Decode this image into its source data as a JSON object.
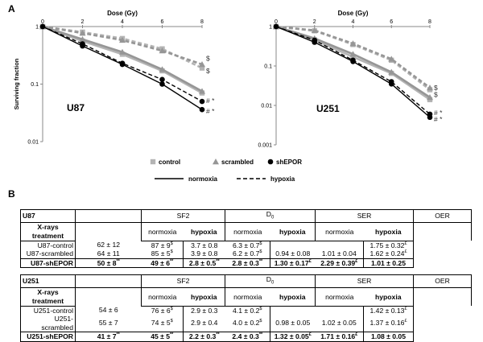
{
  "panel_a": "A",
  "panel_b": "B",
  "chart_data": [
    {
      "type": "line",
      "title": "U87",
      "xlabel": "Dose (Gy)",
      "ylabel": "Surviving fraction",
      "yscale": "log",
      "xlim": [
        0,
        8
      ],
      "ylim": [
        0.01,
        1
      ],
      "xticks": [
        "0",
        "2",
        "4",
        "6",
        "8"
      ],
      "yticks": [
        "1",
        "0.1",
        "0.01"
      ],
      "series": [
        {
          "name": "control",
          "condition": "normoxia",
          "marker": "square",
          "color": "#b4b4b4",
          "x": [
            0,
            2,
            4,
            6,
            8
          ],
          "y": [
            1,
            0.56,
            0.33,
            0.17,
            0.07
          ]
        },
        {
          "name": "scrambled",
          "condition": "normoxia",
          "marker": "triangle",
          "color": "#969696",
          "x": [
            0,
            2,
            4,
            6,
            8
          ],
          "y": [
            1,
            0.6,
            0.36,
            0.18,
            0.075
          ]
        },
        {
          "name": "shEPOR",
          "condition": "normoxia",
          "marker": "circle",
          "color": "#000000",
          "x": [
            0,
            2,
            4,
            6,
            8
          ],
          "y": [
            1,
            0.46,
            0.22,
            0.1,
            0.036
          ]
        },
        {
          "name": "control",
          "condition": "hypoxia",
          "marker": "square",
          "color": "#b4b4b4",
          "x": [
            0,
            2,
            4,
            6,
            8
          ],
          "y": [
            1,
            0.8,
            0.62,
            0.41,
            0.19
          ]
        },
        {
          "name": "scrambled",
          "condition": "hypoxia",
          "marker": "triangle",
          "color": "#969696",
          "x": [
            0,
            2,
            4,
            6,
            8
          ],
          "y": [
            1,
            0.77,
            0.58,
            0.38,
            0.22
          ]
        },
        {
          "name": "shEPOR",
          "condition": "hypoxia",
          "marker": "circle",
          "color": "#000000",
          "x": [
            0,
            2,
            4,
            6,
            8
          ],
          "y": [
            1,
            0.5,
            0.23,
            0.12,
            0.05
          ]
        }
      ],
      "annotations": [
        {
          "text": "$",
          "x": 8,
          "y": 0.28
        },
        {
          "text": "$",
          "x": 8,
          "y": 0.17
        },
        {
          "text": "# *",
          "x": 8,
          "y": 0.052
        },
        {
          "text": "# *",
          "x": 8,
          "y": 0.034
        }
      ]
    },
    {
      "type": "line",
      "title": "U251",
      "xlabel": "Dose (Gy)",
      "ylabel": "",
      "yscale": "log",
      "xlim": [
        0,
        8
      ],
      "ylim": [
        0.001,
        1
      ],
      "xticks": [
        "0",
        "2",
        "4",
        "6",
        "8"
      ],
      "yticks": [
        "1",
        "0.1",
        "0.01",
        "0.001"
      ],
      "series": [
        {
          "name": "control",
          "condition": "normoxia",
          "marker": "square",
          "color": "#b4b4b4",
          "x": [
            0,
            2,
            4,
            6,
            8
          ],
          "y": [
            1,
            0.46,
            0.17,
            0.065,
            0.014
          ]
        },
        {
          "name": "scrambled",
          "condition": "normoxia",
          "marker": "triangle",
          "color": "#969696",
          "x": [
            0,
            2,
            4,
            6,
            8
          ],
          "y": [
            1,
            0.5,
            0.2,
            0.07,
            0.016
          ]
        },
        {
          "name": "shEPOR",
          "condition": "normoxia",
          "marker": "circle",
          "color": "#000000",
          "x": [
            0,
            2,
            4,
            6,
            8
          ],
          "y": [
            1,
            0.4,
            0.13,
            0.035,
            0.005
          ]
        },
        {
          "name": "control",
          "condition": "hypoxia",
          "marker": "square",
          "color": "#b4b4b4",
          "x": [
            0,
            2,
            4,
            6,
            8
          ],
          "y": [
            1,
            0.78,
            0.35,
            0.14,
            0.025
          ]
        },
        {
          "name": "scrambled",
          "condition": "hypoxia",
          "marker": "triangle",
          "color": "#969696",
          "x": [
            0,
            2,
            4,
            6,
            8
          ],
          "y": [
            1,
            0.8,
            0.37,
            0.15,
            0.028
          ]
        },
        {
          "name": "shEPOR",
          "condition": "hypoxia",
          "marker": "circle",
          "color": "#000000",
          "x": [
            0,
            2,
            4,
            6,
            8
          ],
          "y": [
            1,
            0.45,
            0.14,
            0.04,
            0.006
          ]
        }
      ],
      "annotations": [
        {
          "text": "$",
          "x": 8,
          "y": 0.028
        },
        {
          "text": "$",
          "x": 8,
          "y": 0.019
        },
        {
          "text": "# *",
          "x": 8,
          "y": 0.0065
        },
        {
          "text": "# *",
          "x": 8,
          "y": 0.0045
        }
      ]
    }
  ],
  "legend": {
    "markers": [
      {
        "label": "control",
        "marker": "square",
        "color": "#b4b4b4"
      },
      {
        "label": "scrambled",
        "marker": "triangle",
        "color": "#969696"
      },
      {
        "label": "shEPOR",
        "marker": "circle",
        "color": "#000000"
      }
    ],
    "lines": [
      {
        "label": "normoxia",
        "style": "solid"
      },
      {
        "label": "hypoxia",
        "style": "dashed"
      }
    ]
  },
  "tables": [
    {
      "cell_line": "U87",
      "treatment": "X-rays treatment",
      "headers": {
        "sf2": "SF2",
        "d0": "D",
        "d0_sub": "0",
        "ser": "SER",
        "oer": "OER"
      },
      "subheaders": {
        "normoxia": "normoxia",
        "hypoxia": "hypoxia"
      },
      "rows": [
        {
          "label": "U87-control",
          "bold": false,
          "sf2_n": "62 ± 12",
          "sf2_h": "87 ± 9",
          "sf2_h_sup": "$",
          "d0_n": "3.7 ± 0.8",
          "d0_h": "6.3 ± 0.7",
          "d0_h_sup": "$",
          "ser_n": "",
          "ser_n_sup": "",
          "ser_h": "",
          "ser_h_sup": "",
          "oer": "1.75 ± 0.32",
          "oer_sup": "£"
        },
        {
          "label": "U87-scrambled",
          "bold": false,
          "sf2_n": "64 ± 11",
          "sf2_h": "85 ± 5",
          "sf2_h_sup": "$",
          "d0_n": "3.9 ± 0.8",
          "d0_h": "6.2 ± 0.7",
          "d0_h_sup": "$",
          "ser_n": "0.94 ± 0.08",
          "ser_n_sup": "",
          "ser_h": "1.01 ± 0.04",
          "ser_h_sup": "",
          "oer": "1.62 ± 0.24",
          "oer_sup": "£"
        },
        {
          "label": "U87-shEPOR",
          "bold": true,
          "sf2_n": "50 ± 8",
          "sf2_n_sup": "**",
          "sf2_h": "49 ± 6",
          "sf2_h_sup": "**",
          "d0_n": "2.8 ± 0.5",
          "d0_n_sup": "**",
          "d0_h": "2.8 ± 0.3",
          "d0_h_sup": "**",
          "ser_n": "1.30 ± 0.17",
          "ser_n_sup": "£",
          "ser_h": "2.29 ± 0.39",
          "ser_h_sup": "£",
          "oer": "1.01 ± 0.25",
          "oer_sup": ""
        }
      ]
    },
    {
      "cell_line": "U251",
      "treatment": "X-rays treatment",
      "headers": {
        "sf2": "SF2",
        "d0": "D",
        "d0_sub": "0",
        "ser": "SER",
        "oer": "OER"
      },
      "subheaders": {
        "normoxia": "normoxia",
        "hypoxia": "hypoxia"
      },
      "rows": [
        {
          "label": "U251-control",
          "bold": false,
          "sf2_n": "54 ± 6",
          "sf2_h": "76 ± 6",
          "sf2_h_sup": "$",
          "d0_n": "2.9 ± 0.3",
          "d0_h": "4.1 ± 0.2",
          "d0_h_sup": "$",
          "ser_n": "",
          "ser_n_sup": "",
          "ser_h": "",
          "ser_h_sup": "",
          "oer": "1.42 ± 0.13",
          "oer_sup": "£"
        },
        {
          "label": "U251-scrambled",
          "bold": false,
          "sf2_n": "55 ± 7",
          "sf2_h": "74 ± 5",
          "sf2_h_sup": "$",
          "d0_n": "2.9 ± 0.4",
          "d0_h": "4.0 ± 0.2",
          "d0_h_sup": "$",
          "ser_n": "0.98 ± 0.05",
          "ser_n_sup": "",
          "ser_h": "1.02 ± 0.05",
          "ser_h_sup": "",
          "oer": "1.37 ± 0.16",
          "oer_sup": "£"
        },
        {
          "label": "U251-shEPOR",
          "bold": true,
          "sf2_n": "41 ± 7",
          "sf2_n_sup": "**",
          "sf2_h": "45 ± 5",
          "sf2_h_sup": "**",
          "d0_n": "2.2 ± 0.3",
          "d0_n_sup": "**",
          "d0_h": "2.4 ± 0.3",
          "d0_h_sup": "**",
          "ser_n": "1.32 ± 0.05",
          "ser_n_sup": "£",
          "ser_h": "1.71 ± 0.16",
          "ser_h_sup": "£",
          "oer": "1.08 ± 0.05",
          "oer_sup": ""
        }
      ]
    }
  ]
}
